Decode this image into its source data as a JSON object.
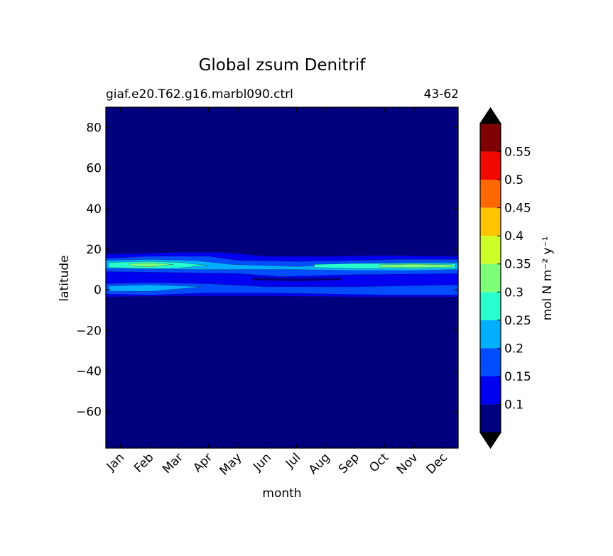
{
  "chart_data": {
    "type": "heatmap",
    "title": "Global zsum Denitrif",
    "subtitle_left": "giaf.e20.T62.g16.marbl090.ctrl",
    "subtitle_right": "43-62",
    "xlabel": "month",
    "ylabel": "latitude",
    "x_categories": [
      "Jan",
      "Feb",
      "Mar",
      "Apr",
      "May",
      "Jun",
      "Jul",
      "Aug",
      "Sep",
      "Oct",
      "Nov",
      "Dec"
    ],
    "xlim": [
      0.5,
      12.5
    ],
    "ylim": [
      -78,
      90
    ],
    "y_ticks": [
      -60,
      -40,
      -20,
      0,
      20,
      40,
      60,
      80
    ],
    "y_tick_labels": [
      "−60",
      "−40",
      "−20",
      "0",
      "20",
      "40",
      "60",
      "80"
    ],
    "grid": false,
    "colorbar": {
      "label": "mol N m⁻² y⁻¹",
      "levels": [
        0.05,
        0.1,
        0.15,
        0.2,
        0.25,
        0.3,
        0.35,
        0.4,
        0.45,
        0.5,
        0.55,
        0.6
      ],
      "tick_values": [
        0.1,
        0.15,
        0.2,
        0.25,
        0.3,
        0.35,
        0.4,
        0.45,
        0.5,
        0.55
      ],
      "tick_labels": [
        "0.1",
        "0.15",
        "0.2",
        "0.25",
        "0.3",
        "0.35",
        "0.4",
        "0.45",
        "0.5",
        "0.55"
      ],
      "colors": [
        "#00007f",
        "#0000f0",
        "#004cff",
        "#00b0ff",
        "#29ffce",
        "#7dff7a",
        "#ceff29",
        "#ffc400",
        "#ff6800",
        "#f10800",
        "#7f0000"
      ],
      "extend": "both",
      "under_color": "#000000",
      "over_color": "#000000"
    },
    "bands": [
      {
        "level": 0.1,
        "points": [
          [
            0.5,
            17.5
          ],
          [
            3,
            18.5
          ],
          [
            4.5,
            18.5
          ],
          [
            6,
            16.5
          ],
          [
            8,
            16.5
          ],
          [
            10,
            17
          ],
          [
            12.5,
            16.5
          ],
          [
            12.5,
            -3.5
          ],
          [
            9,
            -3.5
          ],
          [
            6,
            -3
          ],
          [
            3,
            -3
          ],
          [
            0.5,
            -3.5
          ]
        ]
      },
      {
        "level": 0.15,
        "points": [
          [
            0.5,
            15.5
          ],
          [
            2,
            16.5
          ],
          [
            4,
            16.5
          ],
          [
            5,
            14.5
          ],
          [
            7,
            14
          ],
          [
            9,
            14.5
          ],
          [
            10.5,
            15
          ],
          [
            12.5,
            15
          ],
          [
            12.5,
            8
          ],
          [
            9,
            7.5
          ],
          [
            6.5,
            6.5
          ],
          [
            5,
            8
          ],
          [
            3,
            8.5
          ],
          [
            0.5,
            9
          ]
        ]
      },
      {
        "level": 0.15,
        "points": [
          [
            0.5,
            3
          ],
          [
            2,
            3.5
          ],
          [
            4,
            3
          ],
          [
            6,
            1.5
          ],
          [
            9,
            1.5
          ],
          [
            12.5,
            2.5
          ],
          [
            12.5,
            -2.5
          ],
          [
            10,
            -2.5
          ],
          [
            8,
            -2
          ],
          [
            6,
            -1.5
          ],
          [
            4,
            -1.5
          ],
          [
            2,
            -2.5
          ],
          [
            0.5,
            -2
          ]
        ]
      },
      {
        "level": 0.2,
        "points": [
          [
            0.5,
            14.5
          ],
          [
            2,
            15
          ],
          [
            3.5,
            14.5
          ],
          [
            4.8,
            12.5
          ],
          [
            7,
            11.5
          ],
          [
            9,
            12.5
          ],
          [
            11,
            13.5
          ],
          [
            12.5,
            13.5
          ],
          [
            12.5,
            10
          ],
          [
            11,
            9.5
          ],
          [
            9,
            9.5
          ],
          [
            7,
            10
          ],
          [
            5,
            10
          ],
          [
            3.5,
            10
          ],
          [
            0.5,
            10.5
          ]
        ]
      },
      {
        "level": 0.2,
        "points": [
          [
            0.6,
            1.8
          ],
          [
            2,
            2.5
          ],
          [
            3.8,
            1.5
          ],
          [
            2,
            -0.8
          ],
          [
            0.6,
            -0.6
          ]
        ]
      },
      {
        "level": 0.25,
        "points": [
          [
            0.6,
            13.5
          ],
          [
            2,
            14
          ],
          [
            3,
            13.5
          ],
          [
            4,
            12
          ],
          [
            3,
            10.8
          ],
          [
            2,
            10.5
          ],
          [
            0.6,
            11
          ]
        ]
      },
      {
        "level": 0.25,
        "points": [
          [
            7.6,
            12.5
          ],
          [
            9,
            13
          ],
          [
            11,
            13
          ],
          [
            12.4,
            12.8
          ],
          [
            12.4,
            10.5
          ],
          [
            11,
            10.3
          ],
          [
            9,
            10.5
          ],
          [
            7.6,
            11
          ]
        ]
      },
      {
        "level": 0.3,
        "points": [
          [
            1.3,
            12.8
          ],
          [
            2,
            13.3
          ],
          [
            2.8,
            12.5
          ],
          [
            2,
            11.3
          ],
          [
            1.3,
            11.8
          ]
        ]
      },
      {
        "level": 0.3,
        "points": [
          [
            9.8,
            12.3
          ],
          [
            11,
            12.7
          ],
          [
            12.3,
            12.3
          ],
          [
            12.3,
            11.3
          ],
          [
            11,
            11
          ],
          [
            9.8,
            11.3
          ]
        ]
      }
    ],
    "lows": [
      {
        "level": 0.05,
        "points": [
          [
            5.5,
            6
          ],
          [
            7,
            5.5
          ],
          [
            8.5,
            6
          ],
          [
            8.5,
            5
          ],
          [
            7,
            4.2
          ],
          [
            5.5,
            4.8
          ]
        ]
      }
    ]
  }
}
